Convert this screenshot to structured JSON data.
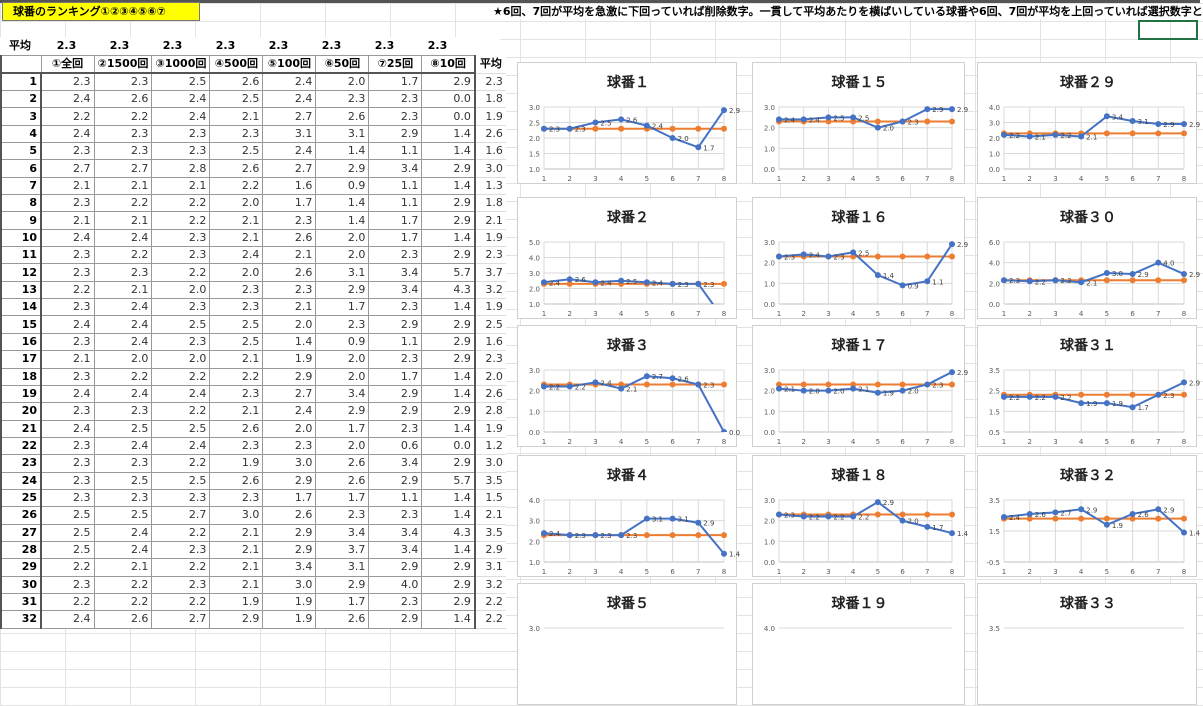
{
  "title": "球番のランキング①②③④⑤⑥⑦",
  "note": "★6回、7回が平均を急激に下回っていれば削除数字。一貫して平均あたりを横ばいしている球番や6回、7回が平均を上回っていれば選択数字と",
  "avg_label": "平均",
  "column_averages": [
    "2.3",
    "2.3",
    "2.3",
    "2.3",
    "2.3",
    "2.3",
    "2.3",
    "2.3"
  ],
  "columns": [
    "①全回",
    "②1500回",
    "③1000回",
    "④500回",
    "⑤100回",
    "⑥50回",
    "⑦25回",
    "⑧10回",
    "平均"
  ],
  "rows": [
    [
      "1",
      "2.3",
      "2.3",
      "2.5",
      "2.6",
      "2.4",
      "2.0",
      "1.7",
      "2.9",
      "2.3"
    ],
    [
      "2",
      "2.4",
      "2.6",
      "2.4",
      "2.5",
      "2.4",
      "2.3",
      "2.3",
      "0.0",
      "1.8"
    ],
    [
      "3",
      "2.2",
      "2.2",
      "2.4",
      "2.1",
      "2.7",
      "2.6",
      "2.3",
      "0.0",
      "1.9"
    ],
    [
      "4",
      "2.4",
      "2.3",
      "2.3",
      "2.3",
      "3.1",
      "3.1",
      "2.9",
      "1.4",
      "2.6"
    ],
    [
      "5",
      "2.3",
      "2.3",
      "2.3",
      "2.5",
      "2.4",
      "1.4",
      "1.1",
      "1.4",
      "1.6"
    ],
    [
      "6",
      "2.7",
      "2.7",
      "2.8",
      "2.6",
      "2.7",
      "2.9",
      "3.4",
      "2.9",
      "3.0"
    ],
    [
      "7",
      "2.1",
      "2.1",
      "2.1",
      "2.2",
      "1.6",
      "0.9",
      "1.1",
      "1.4",
      "1.3"
    ],
    [
      "8",
      "2.3",
      "2.2",
      "2.2",
      "2.0",
      "1.7",
      "1.4",
      "1.1",
      "2.9",
      "1.8"
    ],
    [
      "9",
      "2.1",
      "2.1",
      "2.2",
      "2.1",
      "2.3",
      "1.4",
      "1.7",
      "2.9",
      "2.1"
    ],
    [
      "10",
      "2.4",
      "2.4",
      "2.3",
      "2.1",
      "2.6",
      "2.0",
      "1.7",
      "1.4",
      "1.9"
    ],
    [
      "11",
      "2.3",
      "2.2",
      "2.3",
      "2.4",
      "2.1",
      "2.0",
      "2.3",
      "2.9",
      "2.3"
    ],
    [
      "12",
      "2.3",
      "2.3",
      "2.2",
      "2.0",
      "2.6",
      "3.1",
      "3.4",
      "5.7",
      "3.7"
    ],
    [
      "13",
      "2.2",
      "2.1",
      "2.0",
      "2.3",
      "2.3",
      "2.9",
      "3.4",
      "4.3",
      "3.2"
    ],
    [
      "14",
      "2.3",
      "2.4",
      "2.3",
      "2.3",
      "2.1",
      "1.7",
      "2.3",
      "1.4",
      "1.9"
    ],
    [
      "15",
      "2.4",
      "2.4",
      "2.5",
      "2.5",
      "2.0",
      "2.3",
      "2.9",
      "2.9",
      "2.5"
    ],
    [
      "16",
      "2.3",
      "2.4",
      "2.3",
      "2.5",
      "1.4",
      "0.9",
      "1.1",
      "2.9",
      "1.6"
    ],
    [
      "17",
      "2.1",
      "2.0",
      "2.0",
      "2.1",
      "1.9",
      "2.0",
      "2.3",
      "2.9",
      "2.3"
    ],
    [
      "18",
      "2.3",
      "2.2",
      "2.2",
      "2.2",
      "2.9",
      "2.0",
      "1.7",
      "1.4",
      "2.0"
    ],
    [
      "19",
      "2.4",
      "2.4",
      "2.4",
      "2.3",
      "2.7",
      "3.4",
      "2.9",
      "1.4",
      "2.6"
    ],
    [
      "20",
      "2.3",
      "2.3",
      "2.2",
      "2.1",
      "2.4",
      "2.9",
      "2.9",
      "2.9",
      "2.8"
    ],
    [
      "21",
      "2.4",
      "2.5",
      "2.5",
      "2.6",
      "2.0",
      "1.7",
      "2.3",
      "1.4",
      "1.9"
    ],
    [
      "22",
      "2.3",
      "2.4",
      "2.4",
      "2.3",
      "2.3",
      "2.0",
      "0.6",
      "0.0",
      "1.2"
    ],
    [
      "23",
      "2.3",
      "2.3",
      "2.2",
      "1.9",
      "3.0",
      "2.6",
      "3.4",
      "2.9",
      "3.0"
    ],
    [
      "24",
      "2.3",
      "2.5",
      "2.5",
      "2.6",
      "2.9",
      "2.6",
      "2.9",
      "5.7",
      "3.5"
    ],
    [
      "25",
      "2.3",
      "2.3",
      "2.3",
      "2.3",
      "1.7",
      "1.7",
      "1.1",
      "1.4",
      "1.5"
    ],
    [
      "26",
      "2.5",
      "2.5",
      "2.7",
      "3.0",
      "2.6",
      "2.3",
      "2.3",
      "1.4",
      "2.1"
    ],
    [
      "27",
      "2.5",
      "2.4",
      "2.2",
      "2.1",
      "2.9",
      "3.4",
      "3.4",
      "4.3",
      "3.5"
    ],
    [
      "28",
      "2.5",
      "2.4",
      "2.3",
      "2.1",
      "2.9",
      "3.7",
      "3.4",
      "1.4",
      "2.9"
    ],
    [
      "29",
      "2.2",
      "2.1",
      "2.2",
      "2.1",
      "3.4",
      "3.1",
      "2.9",
      "2.9",
      "3.1"
    ],
    [
      "30",
      "2.3",
      "2.2",
      "2.3",
      "2.1",
      "3.0",
      "2.9",
      "4.0",
      "2.9",
      "3.2"
    ],
    [
      "31",
      "2.2",
      "2.2",
      "2.2",
      "1.9",
      "1.9",
      "1.7",
      "2.3",
      "2.9",
      "2.2"
    ],
    [
      "32",
      "2.4",
      "2.6",
      "2.7",
      "2.9",
      "1.9",
      "2.6",
      "2.9",
      "1.4",
      "2.2"
    ]
  ],
  "colors": {
    "series": "#4472c4",
    "average": "#ed7d31",
    "title_bg": "#ffff00",
    "selection": "#217346"
  },
  "chart_data": [
    {
      "type": "line",
      "title": "球番１",
      "x": [
        1,
        2,
        3,
        4,
        5,
        6,
        7,
        8
      ],
      "ylim": [
        1.0,
        3.0
      ],
      "yticks": [
        "1.0",
        "1.5",
        "2.0",
        "2.5",
        "3.0"
      ],
      "series": [
        {
          "values": [
            2.3,
            2.3,
            2.5,
            2.6,
            2.4,
            2.0,
            1.7,
            2.9
          ],
          "labels": true
        },
        {
          "values": [
            2.3,
            2.3,
            2.3,
            2.3,
            2.3,
            2.3,
            2.3,
            2.3
          ]
        }
      ]
    },
    {
      "type": "line",
      "title": "球番１５",
      "x": [
        1,
        2,
        3,
        4,
        5,
        6,
        7,
        8
      ],
      "ylim": [
        0.0,
        3.0
      ],
      "yticks": [
        "0.0",
        "1.0",
        "2.0",
        "3.0"
      ],
      "series": [
        {
          "values": [
            2.4,
            2.4,
            2.5,
            2.5,
            2.0,
            2.3,
            2.9,
            2.9
          ],
          "labels": true
        },
        {
          "values": [
            2.3,
            2.3,
            2.3,
            2.3,
            2.3,
            2.3,
            2.3,
            2.3
          ]
        }
      ]
    },
    {
      "type": "line",
      "title": "球番２９",
      "x": [
        1,
        2,
        3,
        4,
        5,
        6,
        7,
        8
      ],
      "ylim": [
        0.0,
        4.0
      ],
      "yticks": [
        "0.0",
        "1.0",
        "2.0",
        "3.0",
        "4.0"
      ],
      "series": [
        {
          "values": [
            2.2,
            2.1,
            2.2,
            2.1,
            3.4,
            3.1,
            2.9,
            2.9
          ],
          "labels": true
        },
        {
          "values": [
            2.3,
            2.3,
            2.3,
            2.3,
            2.3,
            2.3,
            2.3,
            2.3
          ]
        }
      ]
    },
    {
      "type": "line",
      "title": "球番２",
      "x": [
        1,
        2,
        3,
        4,
        5,
        6,
        7,
        8
      ],
      "ylim": [
        1.0,
        5.0
      ],
      "yticks": [
        "1.0",
        "2.0",
        "3.0",
        "4.0",
        "5.0"
      ],
      "series": [
        {
          "values": [
            2.4,
            2.6,
            2.4,
            2.5,
            2.4,
            2.3,
            2.3,
            0.0
          ],
          "labels": true
        },
        {
          "values": [
            2.3,
            2.3,
            2.3,
            2.3,
            2.3,
            2.3,
            2.3,
            2.3
          ]
        }
      ]
    },
    {
      "type": "line",
      "title": "球番１６",
      "x": [
        1,
        2,
        3,
        4,
        5,
        6,
        7,
        8
      ],
      "ylim": [
        0.0,
        3.0
      ],
      "yticks": [
        "0.0",
        "1.0",
        "2.0",
        "3.0"
      ],
      "series": [
        {
          "values": [
            2.3,
            2.4,
            2.3,
            2.5,
            1.4,
            0.9,
            1.1,
            2.9
          ],
          "labels": true
        },
        {
          "values": [
            2.3,
            2.3,
            2.3,
            2.3,
            2.3,
            2.3,
            2.3,
            2.3
          ]
        }
      ]
    },
    {
      "type": "line",
      "title": "球番３０",
      "x": [
        1,
        2,
        3,
        4,
        5,
        6,
        7,
        8
      ],
      "ylim": [
        0.0,
        6.0
      ],
      "yticks": [
        "0.0",
        "2.0",
        "4.0",
        "6.0"
      ],
      "series": [
        {
          "values": [
            2.3,
            2.2,
            2.3,
            2.1,
            3.0,
            2.9,
            4.0,
            2.9
          ],
          "labels": true
        },
        {
          "values": [
            2.3,
            2.3,
            2.3,
            2.3,
            2.3,
            2.3,
            2.3,
            2.3
          ]
        }
      ]
    },
    {
      "type": "line",
      "title": "球番３",
      "x": [
        1,
        2,
        3,
        4,
        5,
        6,
        7,
        8
      ],
      "ylim": [
        0.0,
        3.0
      ],
      "yticks": [
        "0.0",
        "1.0",
        "2.0",
        "3.0"
      ],
      "series": [
        {
          "values": [
            2.2,
            2.2,
            2.4,
            2.1,
            2.7,
            2.6,
            2.3,
            0.0
          ],
          "labels": true
        },
        {
          "values": [
            2.3,
            2.3,
            2.3,
            2.3,
            2.3,
            2.3,
            2.3,
            2.3
          ]
        }
      ]
    },
    {
      "type": "line",
      "title": "球番１７",
      "x": [
        1,
        2,
        3,
        4,
        5,
        6,
        7,
        8
      ],
      "ylim": [
        0.0,
        3.0
      ],
      "yticks": [
        "0.0",
        "1.0",
        "2.0",
        "3.0"
      ],
      "series": [
        {
          "values": [
            2.1,
            2.0,
            2.0,
            2.1,
            1.9,
            2.0,
            2.3,
            2.9
          ],
          "labels": true
        },
        {
          "values": [
            2.3,
            2.3,
            2.3,
            2.3,
            2.3,
            2.3,
            2.3,
            2.3
          ]
        }
      ]
    },
    {
      "type": "line",
      "title": "球番３１",
      "x": [
        1,
        2,
        3,
        4,
        5,
        6,
        7,
        8
      ],
      "ylim": [
        0.5,
        3.5
      ],
      "yticks": [
        "0.5",
        "1.5",
        "2.5",
        "3.5"
      ],
      "series": [
        {
          "values": [
            2.2,
            2.2,
            2.2,
            1.9,
            1.9,
            1.7,
            2.3,
            2.9
          ],
          "labels": true
        },
        {
          "values": [
            2.3,
            2.3,
            2.3,
            2.3,
            2.3,
            2.3,
            2.3,
            2.3
          ]
        }
      ]
    },
    {
      "type": "line",
      "title": "球番４",
      "x": [
        1,
        2,
        3,
        4,
        5,
        6,
        7,
        8
      ],
      "ylim": [
        1.0,
        4.0
      ],
      "yticks": [
        "1.0",
        "2.0",
        "3.0",
        "4.0"
      ],
      "series": [
        {
          "values": [
            2.4,
            2.3,
            2.3,
            2.3,
            3.1,
            3.1,
            2.9,
            1.4
          ],
          "labels": true
        },
        {
          "values": [
            2.3,
            2.3,
            2.3,
            2.3,
            2.3,
            2.3,
            2.3,
            2.3
          ]
        }
      ]
    },
    {
      "type": "line",
      "title": "球番１８",
      "x": [
        1,
        2,
        3,
        4,
        5,
        6,
        7,
        8
      ],
      "ylim": [
        0.0,
        3.0
      ],
      "yticks": [
        "0.0",
        "1.0",
        "2.0",
        "3.0"
      ],
      "series": [
        {
          "values": [
            2.3,
            2.2,
            2.2,
            2.2,
            2.9,
            2.0,
            1.7,
            1.4
          ],
          "labels": true
        },
        {
          "values": [
            2.3,
            2.3,
            2.3,
            2.3,
            2.3,
            2.3,
            2.3,
            2.3
          ]
        }
      ]
    },
    {
      "type": "line",
      "title": "球番３２",
      "x": [
        1,
        2,
        3,
        4,
        5,
        6,
        7,
        8
      ],
      "ylim": [
        -0.5,
        3.5
      ],
      "yticks": [
        "-0.5",
        "1.5",
        "3.5"
      ],
      "series": [
        {
          "values": [
            2.4,
            2.6,
            2.7,
            2.9,
            1.9,
            2.6,
            2.9,
            1.4
          ],
          "labels": true
        },
        {
          "values": [
            2.3,
            2.3,
            2.3,
            2.3,
            2.3,
            2.3,
            2.3,
            2.3
          ]
        }
      ]
    },
    {
      "type": "line",
      "title": "球番５",
      "yticks": [
        "3.0"
      ]
    },
    {
      "type": "line",
      "title": "球番１９",
      "yticks": [
        "4.0"
      ]
    },
    {
      "type": "line",
      "title": "球番３３",
      "yticks": [
        "3.5"
      ]
    }
  ]
}
